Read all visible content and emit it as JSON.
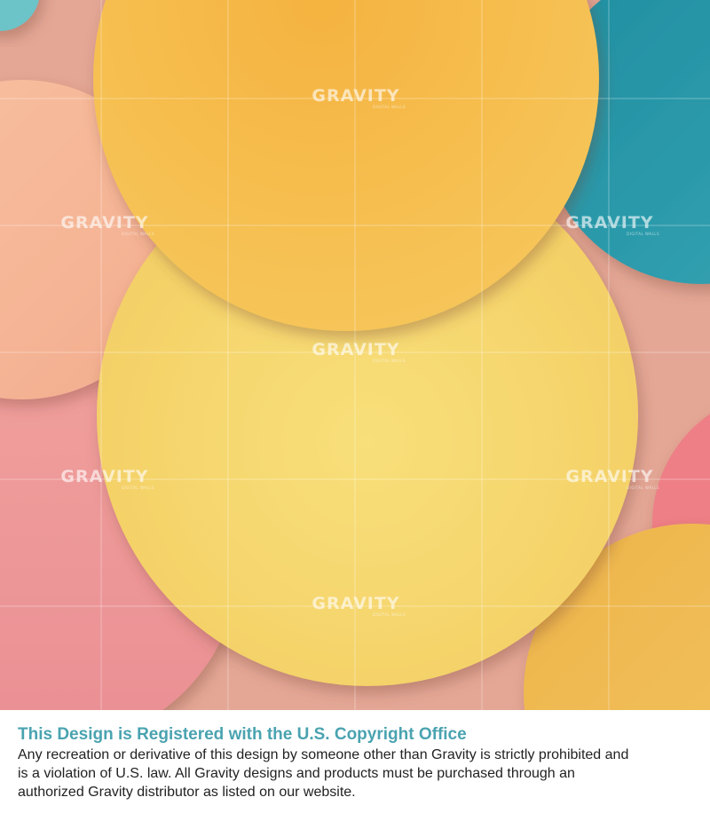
{
  "artwork": {
    "colors": {
      "background": "#e4a796",
      "orange_circle": "#f2b342",
      "yellow_circle": "#f5d56d",
      "peach_circle": "#f6b796",
      "teal_circle": "#2a98a8",
      "pink_circle": "#ee9a9a",
      "bright_pink_circle": "#ee7f86",
      "gold_circle": "#eebb4e"
    }
  },
  "watermark": {
    "brand": "GRAVITY",
    "tagline": "DIGITAL WALLS"
  },
  "notice": {
    "title": "This Design is Registered with the U.S. Copyright Office",
    "body": "Any recreation or derivative of this design by someone other than Gravity is strictly prohibited and is a violation of U.S. law. All Gravity designs and products must be purchased through an authorized Gravity distributor as listed on our website."
  }
}
